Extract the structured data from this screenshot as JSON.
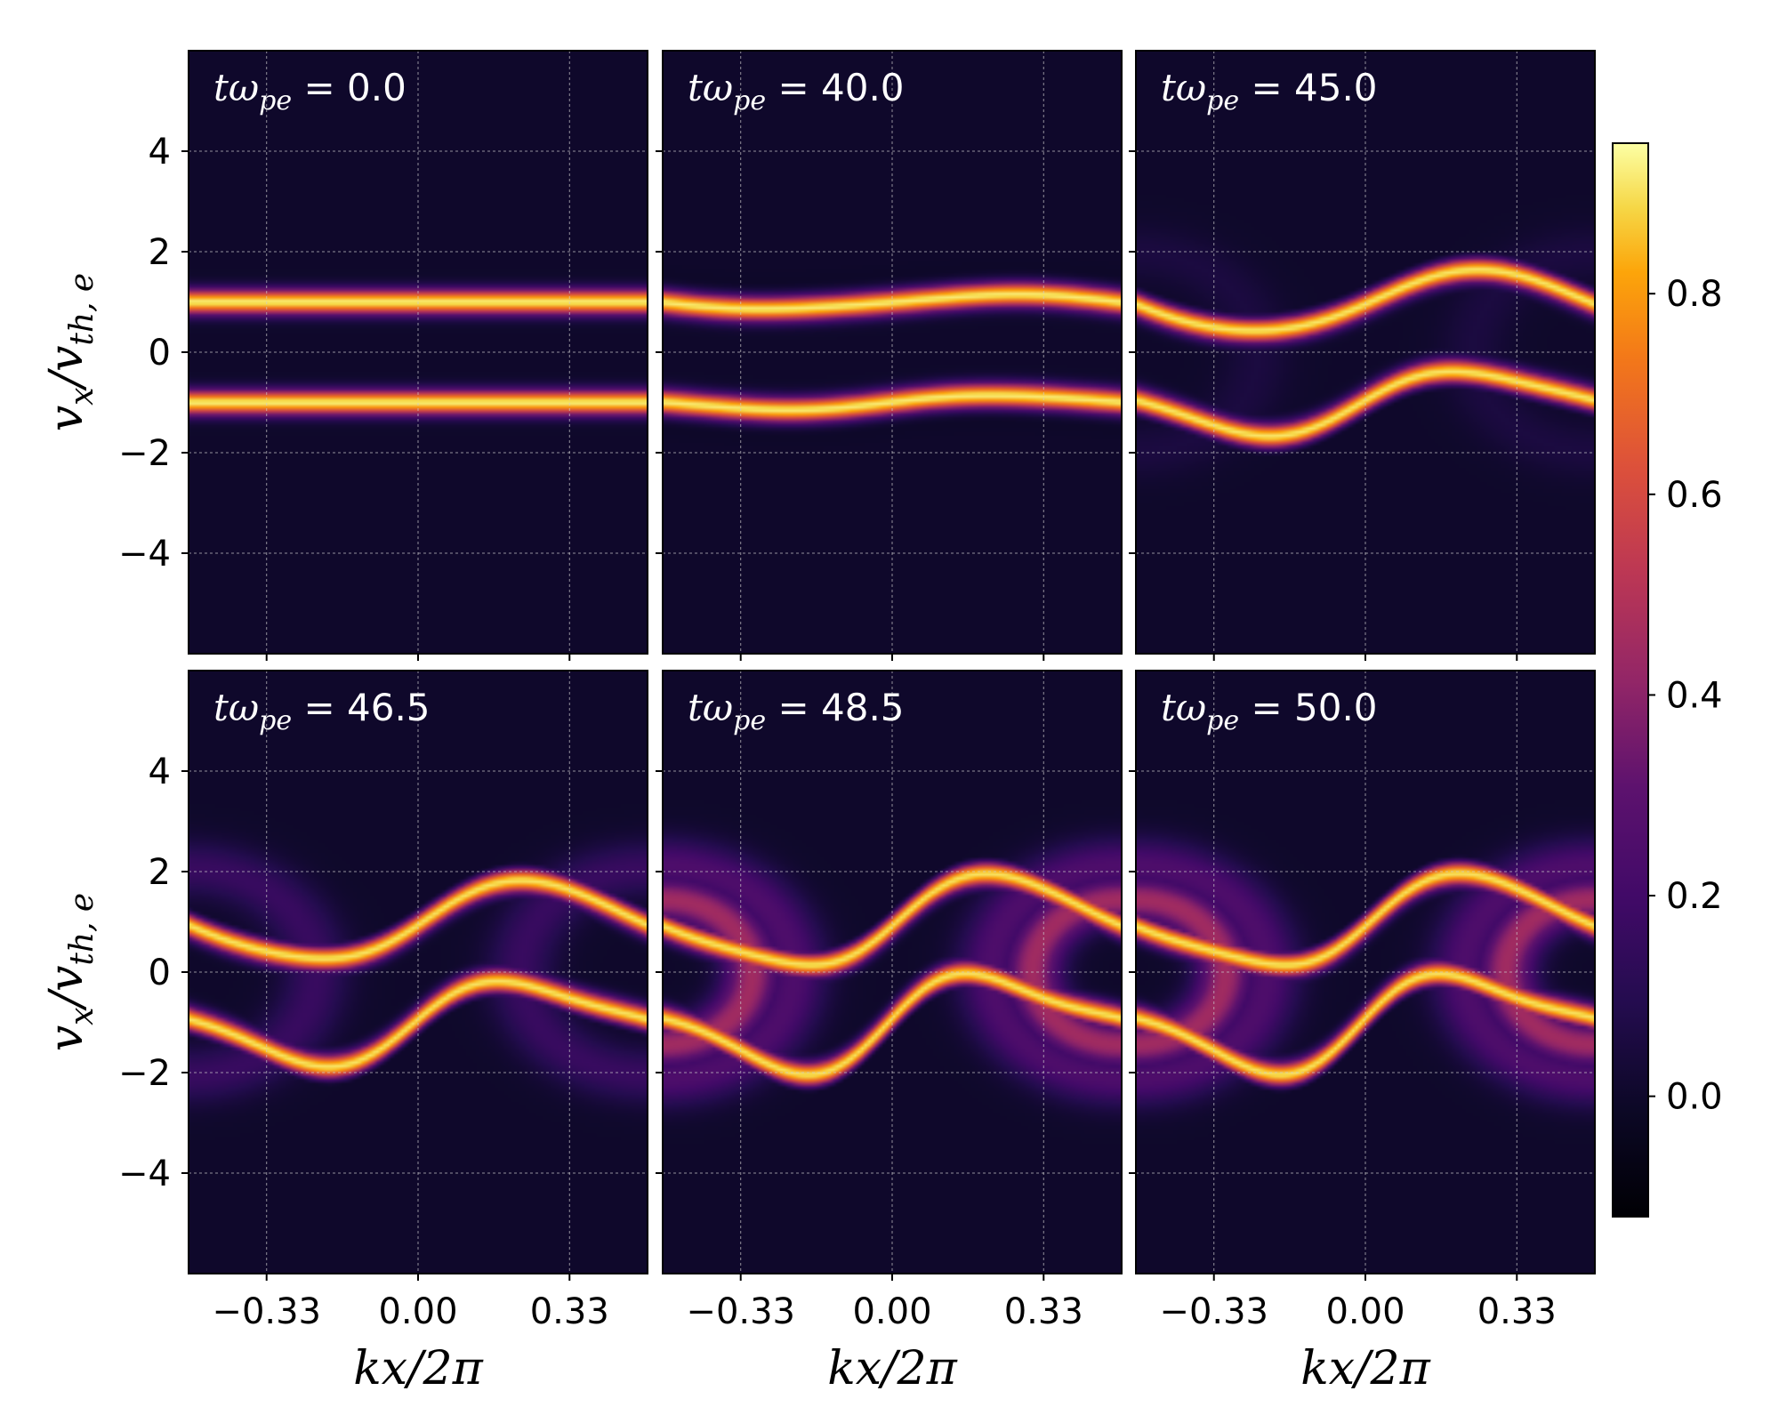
{
  "chart_data": {
    "type": "heatmap",
    "title": "",
    "xlabel": "kx/2π",
    "ylabel": "v_x/v_th,e",
    "ylabel_parts": {
      "base": "v",
      "sub1": "x",
      "slash": "/",
      "base2": "v",
      "sub2": "th, e"
    },
    "xlim": [
      -0.5,
      0.5
    ],
    "ylim": [
      -6,
      6
    ],
    "xticks": [
      -0.33,
      0.0,
      0.33
    ],
    "xtick_labels": [
      "−0.33",
      "0.00",
      "0.33"
    ],
    "yticks": [
      4,
      2,
      0,
      -2,
      -4
    ],
    "ytick_labels": [
      "4",
      "2",
      "0",
      "−2",
      "−4"
    ],
    "grid": true,
    "colormap": "inferno",
    "colorbar": {
      "range": [
        -0.12,
        0.95
      ],
      "ticks": [
        0.8,
        0.6,
        0.4,
        0.2,
        0.0
      ],
      "tick_labels": [
        "0.8",
        "0.6",
        "0.4",
        "0.2",
        "0.0"
      ]
    },
    "panels": [
      {
        "label_prefix": "tω",
        "label_sub": "pe",
        "label_value": " = 0.0",
        "time": 0.0,
        "amp": 0.0,
        "beam_v": 1.0
      },
      {
        "label_prefix": "tω",
        "label_sub": "pe",
        "label_value": " = 40.0",
        "time": 40.0,
        "amp": 0.15,
        "beam_v": 1.0
      },
      {
        "label_prefix": "tω",
        "label_sub": "pe",
        "label_value": " = 45.0",
        "time": 45.0,
        "amp": 0.65,
        "beam_v": 1.0
      },
      {
        "label_prefix": "tω",
        "label_sub": "pe",
        "label_value": " = 46.5",
        "time": 46.5,
        "amp": 0.85,
        "beam_v": 1.0
      },
      {
        "label_prefix": "tω",
        "label_sub": "pe",
        "label_value": " = 48.5",
        "time": 48.5,
        "amp": 1.0,
        "beam_v": 1.0
      },
      {
        "label_prefix": "tω",
        "label_sub": "pe",
        "label_value": " = 50.0",
        "time": 50.0,
        "amp": 1.0,
        "beam_v": 1.0
      }
    ],
    "colors": {
      "background": "#170b3b",
      "grid": "#cccccc"
    }
  }
}
